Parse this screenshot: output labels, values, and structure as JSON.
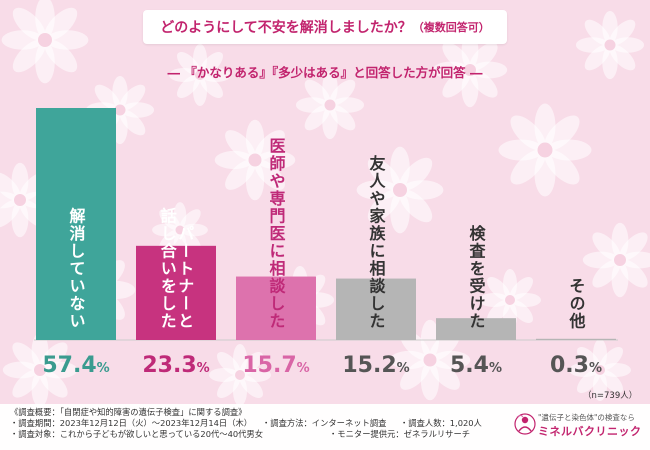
{
  "header": {
    "title": "どのようにして不安を解消しましたか？",
    "title_note": "（複数回答可）",
    "subtitle": "― 『かなりある』『多少はある』と回答した方が回答 ―"
  },
  "chart_data": {
    "type": "bar",
    "title": "どのようにして不安を解消しましたか？（複数回答可）",
    "unit": "%",
    "categories": [
      "解消していない",
      "パートナーと話し合いをした",
      "医師や専門医に相談した",
      "友人や家族に相談した",
      "検査を受けた",
      "その他"
    ],
    "category_columns": [
      [
        "解消していない"
      ],
      [
        "パートナーと",
        "話し合いをした"
      ],
      [
        "医師や専門医に相談した"
      ],
      [
        "友人や家族に相談した"
      ],
      [
        "検査を受けた"
      ],
      [
        "その他"
      ]
    ],
    "values": [
      57.4,
      23.3,
      15.7,
      15.2,
      5.4,
      0.3
    ],
    "value_labels": [
      "57.4%",
      "23.3%",
      "15.7%",
      "15.2%",
      "5.4%",
      "0.3%"
    ],
    "ylim": [
      0,
      57.4
    ],
    "colors": [
      "#3fa59a",
      "#c7337f",
      "#dd72ad",
      "#b5b5b5",
      "#b5b5b5",
      "#b5b5b5"
    ],
    "value_colors": [
      "#3a9b8f",
      "#bf2a78",
      "#d965a6",
      "#555555",
      "#555555",
      "#555555"
    ],
    "label_colors": [
      "#ffffff",
      "#ffffff",
      "#bf2a78",
      "#333333",
      "#333333",
      "#333333"
    ]
  },
  "sample_size": "（n=739人）",
  "footer": {
    "line1": "《調査概要：「自閉症や知的障害の遺伝子検査」に関する調査》",
    "line2a": "・調査期間：2023年12月12日（火）〜2023年12月14日（木）",
    "line2b": "・調査方法：インターネット調査",
    "line2c": "・調査人数：1,020人",
    "line3a": "・調査対象：これから子どもが欲しいと思っている20代〜40代男女",
    "line3b": "・モニター提供元：ゼネラルリサーチ"
  },
  "logo": {
    "tagline": "\"遺伝子と染色体\"の検査なら",
    "name": "ミネルバクリニック"
  }
}
